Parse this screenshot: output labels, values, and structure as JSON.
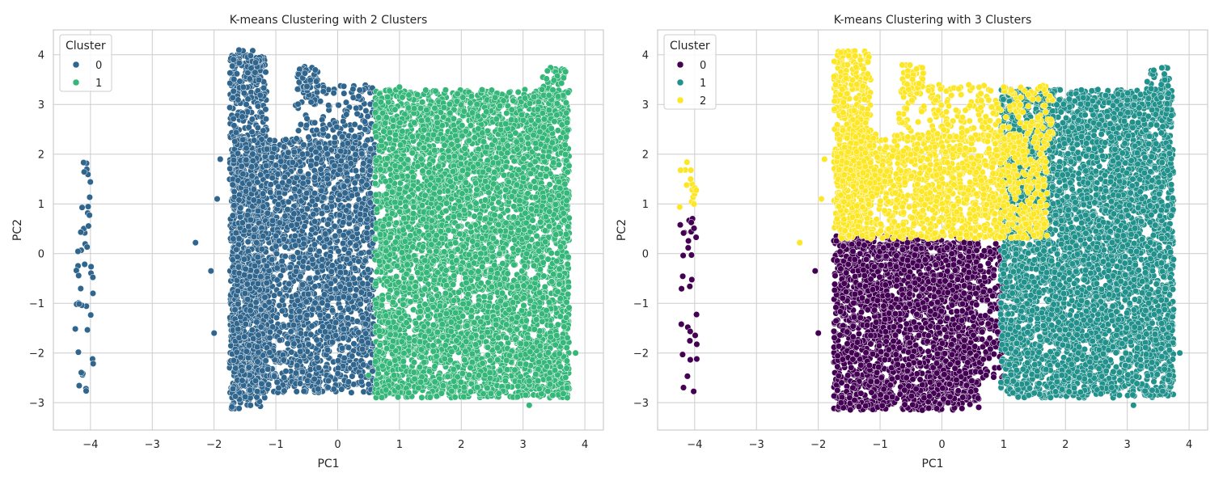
{
  "chart_data": [
    {
      "type": "scatter",
      "title": "K-means Clustering with 2 Clusters",
      "xlabel": "PC1",
      "ylabel": "PC2",
      "xlim": [
        -4.6,
        4.3
      ],
      "ylim": [
        -3.55,
        4.5
      ],
      "xticks": [
        -4,
        -3,
        -2,
        -1,
        0,
        1,
        2,
        3,
        4
      ],
      "yticks": [
        -3,
        -2,
        -1,
        0,
        1,
        2,
        3,
        4
      ],
      "xtick_labels": [
        "−4",
        "−3",
        "−2",
        "−1",
        "0",
        "1",
        "2",
        "3",
        "4"
      ],
      "ytick_labels": [
        "−3",
        "−2",
        "−1",
        "0",
        "1",
        "2",
        "3",
        "4"
      ],
      "grid": true,
      "legend": {
        "title": "Cluster",
        "placement": "top-left"
      },
      "series": [
        {
          "name": "0",
          "color": "#30668e",
          "regions": [
            {
              "x": [
                -4.25,
                -3.95
              ],
              "y": [
                -2.8,
                1.9
              ],
              "n": 45
            },
            {
              "x": [
                -1.75,
                -1.15
              ],
              "y": [
                -3.15,
                4.1
              ],
              "n": 900
            },
            {
              "x": [
                -1.7,
                0.6
              ],
              "y": [
                -2.8,
                2.3
              ],
              "n": 2600
            },
            {
              "x": [
                -0.7,
                0.6
              ],
              "y": [
                2.3,
                3.4
              ],
              "n": 140
            },
            {
              "x": [
                -0.65,
                -0.3
              ],
              "y": [
                3.3,
                3.8
              ],
              "n": 40
            }
          ],
          "outliers": [
            [
              -2.3,
              0.22
            ],
            [
              -1.9,
              1.9
            ],
            [
              -2.0,
              -1.6
            ],
            [
              -1.95,
              1.1
            ],
            [
              -2.05,
              -0.35
            ]
          ]
        },
        {
          "name": "1",
          "color": "#35b779",
          "regions": [
            {
              "x": [
                0.6,
                3.75
              ],
              "y": [
                -2.9,
                3.3
              ],
              "n": 5200
            },
            {
              "x": [
                3.3,
                3.7
              ],
              "y": [
                3.0,
                3.75
              ],
              "n": 40
            }
          ],
          "outliers": [
            [
              1.0,
              3.35
            ],
            [
              3.1,
              -3.05
            ],
            [
              3.85,
              -2.0
            ],
            [
              1.15,
              -2.8
            ],
            [
              0.5,
              -2.45
            ]
          ]
        }
      ]
    },
    {
      "type": "scatter",
      "title": "K-means Clustering with 3 Clusters",
      "xlabel": "PC1",
      "ylabel": "PC2",
      "xlim": [
        -4.6,
        4.3
      ],
      "ylim": [
        -3.55,
        4.5
      ],
      "xticks": [
        -4,
        -3,
        -2,
        -1,
        0,
        1,
        2,
        3,
        4
      ],
      "yticks": [
        -3,
        -2,
        -1,
        0,
        1,
        2,
        3,
        4
      ],
      "xtick_labels": [
        "−4",
        "−3",
        "−2",
        "−1",
        "0",
        "1",
        "2",
        "3",
        "4"
      ],
      "ytick_labels": [
        "−3",
        "−2",
        "−1",
        "0",
        "1",
        "2",
        "3",
        "4"
      ],
      "grid": true,
      "legend": {
        "title": "Cluster",
        "placement": "top-left"
      },
      "series": [
        {
          "name": "0",
          "color": "#440154",
          "regions": [
            {
              "x": [
                -4.25,
                -3.95
              ],
              "y": [
                -2.8,
                0.75
              ],
              "n": 30
            },
            {
              "x": [
                -1.75,
                0.6
              ],
              "y": [
                -3.15,
                0.35
              ],
              "n": 2300
            },
            {
              "x": [
                0.6,
                1.0
              ],
              "y": [
                -2.5,
                0.2
              ],
              "n": 160
            }
          ],
          "outliers": [
            [
              -2.0,
              -1.6
            ],
            [
              -2.05,
              -0.35
            ],
            [
              0.1,
              -3.0
            ],
            [
              0.4,
              -2.65
            ]
          ]
        },
        {
          "name": "1",
          "color": "#21918c",
          "regions": [
            {
              "x": [
                0.95,
                3.75
              ],
              "y": [
                -2.9,
                3.3
              ],
              "n": 4700
            },
            {
              "x": [
                3.3,
                3.7
              ],
              "y": [
                3.0,
                3.75
              ],
              "n": 40
            }
          ],
          "outliers": [
            [
              3.1,
              -3.05
            ],
            [
              3.85,
              -2.0
            ],
            [
              1.15,
              -2.8
            ]
          ]
        },
        {
          "name": "2",
          "color": "#fde725",
          "regions": [
            {
              "x": [
                -4.25,
                -3.95
              ],
              "y": [
                0.9,
                1.9
              ],
              "n": 15
            },
            {
              "x": [
                -1.75,
                -1.15
              ],
              "y": [
                0.35,
                4.1
              ],
              "n": 500
            },
            {
              "x": [
                -1.7,
                1.7
              ],
              "y": [
                0.3,
                2.4
              ],
              "n": 1400
            },
            {
              "x": [
                -0.7,
                1.8
              ],
              "y": [
                2.3,
                3.4
              ],
              "n": 260
            },
            {
              "x": [
                -0.65,
                -0.3
              ],
              "y": [
                3.3,
                3.8
              ],
              "n": 40
            }
          ],
          "outliers": [
            [
              -2.3,
              0.22
            ],
            [
              -1.9,
              1.9
            ],
            [
              -1.95,
              1.1
            ],
            [
              1.0,
              3.35
            ]
          ]
        }
      ]
    }
  ]
}
